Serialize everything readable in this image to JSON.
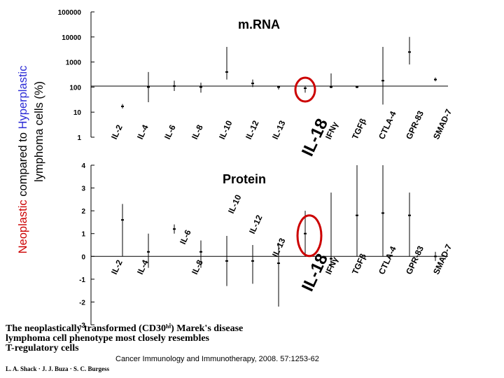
{
  "y_axis_label": {
    "part1": "Neoplastic",
    "part2": " compared to ",
    "part3": "Hyperplastic",
    "line2": "lymphoma cells (%)"
  },
  "colors": {
    "highlight": "#cc0000",
    "blue_text": "#2b2bd6",
    "red_text": "#cc0000",
    "axis": "#000000"
  },
  "chart_data": [
    {
      "type": "scatter",
      "title": "m.RNA",
      "yscale": "log",
      "ylim": [
        1,
        100000
      ],
      "y_ticks": [
        "1",
        "10",
        "100",
        "1000",
        "10000",
        "100000"
      ],
      "categories": [
        "IL-2",
        "IL-4",
        "IL-6",
        "IL-8",
        "IL-10",
        "IL-12",
        "IL-13",
        "IL-18",
        "IFNγ",
        "TGFβ",
        "CTLA-4",
        "GPR-83",
        "SMAD-7"
      ],
      "values": [
        17,
        100,
        110,
        100,
        400,
        140,
        100,
        90,
        100,
        100,
        180,
        2500,
        200
      ],
      "error_low": [
        14,
        25,
        70,
        60,
        200,
        100,
        80,
        60,
        90,
        90,
        20,
        800,
        170
      ],
      "error_high": [
        21,
        400,
        180,
        150,
        4000,
        200,
        110,
        110,
        350,
        110,
        4000,
        10000,
        240
      ],
      "highlight": "IL-18"
    },
    {
      "type": "scatter",
      "title": "Protein",
      "ylim": [
        -3,
        4
      ],
      "y_ticks": [
        "-3",
        "-2",
        "-1",
        "0",
        "1",
        "2",
        "3",
        "4"
      ],
      "categories": [
        "IL-2",
        "IL-4",
        "IL-6",
        "IL-8",
        "IL-10",
        "IL-12",
        "IL-13",
        "IL-18",
        "IFNγ",
        "TGFβ",
        "CTLA-4",
        "GPR-83",
        "SMAD-7"
      ],
      "values": [
        1.6,
        0.2,
        1.2,
        0.2,
        -0.2,
        -0.2,
        -0.3,
        1.0,
        -0.1,
        1.8,
        1.9,
        1.8,
        0.0
      ],
      "error_low": [
        0.0,
        -0.5,
        1.0,
        -0.5,
        -1.3,
        -1.2,
        -2.2,
        0.0,
        -0.5,
        0.0,
        0.0,
        0.0,
        -0.2
      ],
      "error_high": [
        2.3,
        1.0,
        1.4,
        0.7,
        0.9,
        0.5,
        0.6,
        2.0,
        2.8,
        4.0,
        4.0,
        2.8,
        0.2
      ],
      "highlight": "IL-18"
    }
  ],
  "footer": {
    "title_lines": [
      "The neoplastically transformed (CD30ʰⁱ) Marek's disease",
      "lymphoma cell phenotype most closely resembles",
      "T-regulatory cells"
    ],
    "authors": "L. A. Shack · J. J. Buza · S. C. Burgess",
    "citation": "Cancer Immunology and Immunotherapy, 2008. 57:1253-62"
  }
}
